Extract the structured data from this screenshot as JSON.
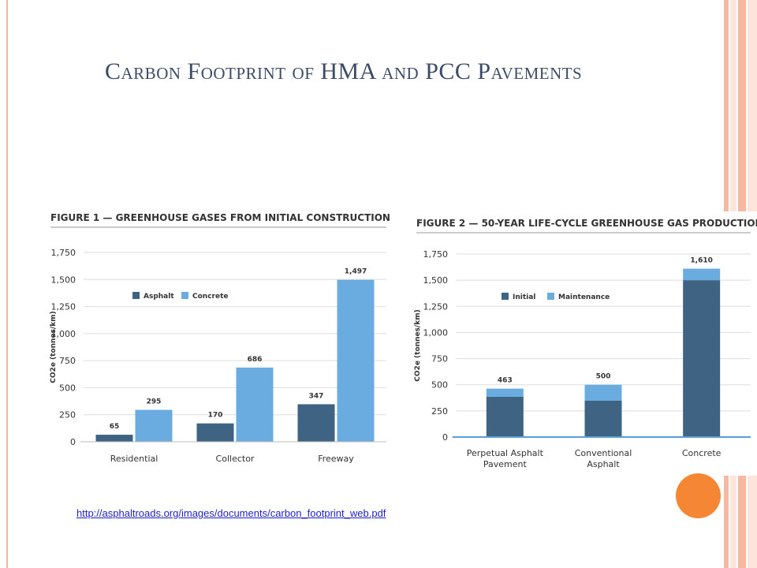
{
  "slide": {
    "title": "Carbon Footprint of HMA and PCC Pavements",
    "link_text": "http://asphaltroads.org/images/documents/carbon_footprint_web.pdf",
    "colors": {
      "accent_orange": "#f58634",
      "deco_peach": "#f6b8a0",
      "deco_light": "#fde5dc",
      "title": "#3c4c66"
    }
  },
  "chart_data": [
    {
      "type": "bar",
      "title": "FIGURE 1 — GREENHOUSE GASES FROM INITIAL CONSTRUCTION",
      "ylabel": "CO2e (tonnes/km)",
      "categories": [
        "Residential",
        "Collector",
        "Freeway"
      ],
      "series": [
        {
          "name": "Asphalt",
          "values": [
            65,
            170,
            347
          ],
          "labels": [
            "65",
            "170",
            "347"
          ],
          "color": "#3e6383"
        },
        {
          "name": "Concrete",
          "values": [
            295,
            686,
            1497
          ],
          "labels": [
            "295",
            "686",
            "1,497"
          ],
          "color": "#6aace0"
        }
      ],
      "ylim": [
        0,
        1750
      ],
      "yticks": [
        "0",
        "250",
        "500",
        "750",
        "1,000",
        "1,250",
        "1,500",
        "1,750"
      ],
      "grid": true,
      "legend": "top-left"
    },
    {
      "type": "bar",
      "stacked": true,
      "title": "FIGURE 2 — 50-YEAR LIFE-CYCLE GREENHOUSE GAS PRODUCTION",
      "ylabel": "CO2e (tonnes/km)",
      "categories": [
        [
          "Perpetual Asphalt",
          "Pavement"
        ],
        [
          "Conventional",
          "Asphalt"
        ],
        [
          "Concrete"
        ]
      ],
      "series": [
        {
          "name": "Initial",
          "values": [
            385,
            347,
            1500
          ],
          "color": "#3e6383"
        },
        {
          "name": "Maintenance",
          "values": [
            78,
            153,
            110
          ],
          "color": "#6aace0"
        }
      ],
      "totals": [
        463,
        500,
        1610
      ],
      "total_labels": [
        "463",
        "500",
        "1,610"
      ],
      "ylim": [
        0,
        1750
      ],
      "yticks": [
        "0",
        "250",
        "500",
        "750",
        "1,000",
        "1,250",
        "1,500",
        "1,750"
      ],
      "grid": true,
      "legend": "top-left"
    }
  ]
}
